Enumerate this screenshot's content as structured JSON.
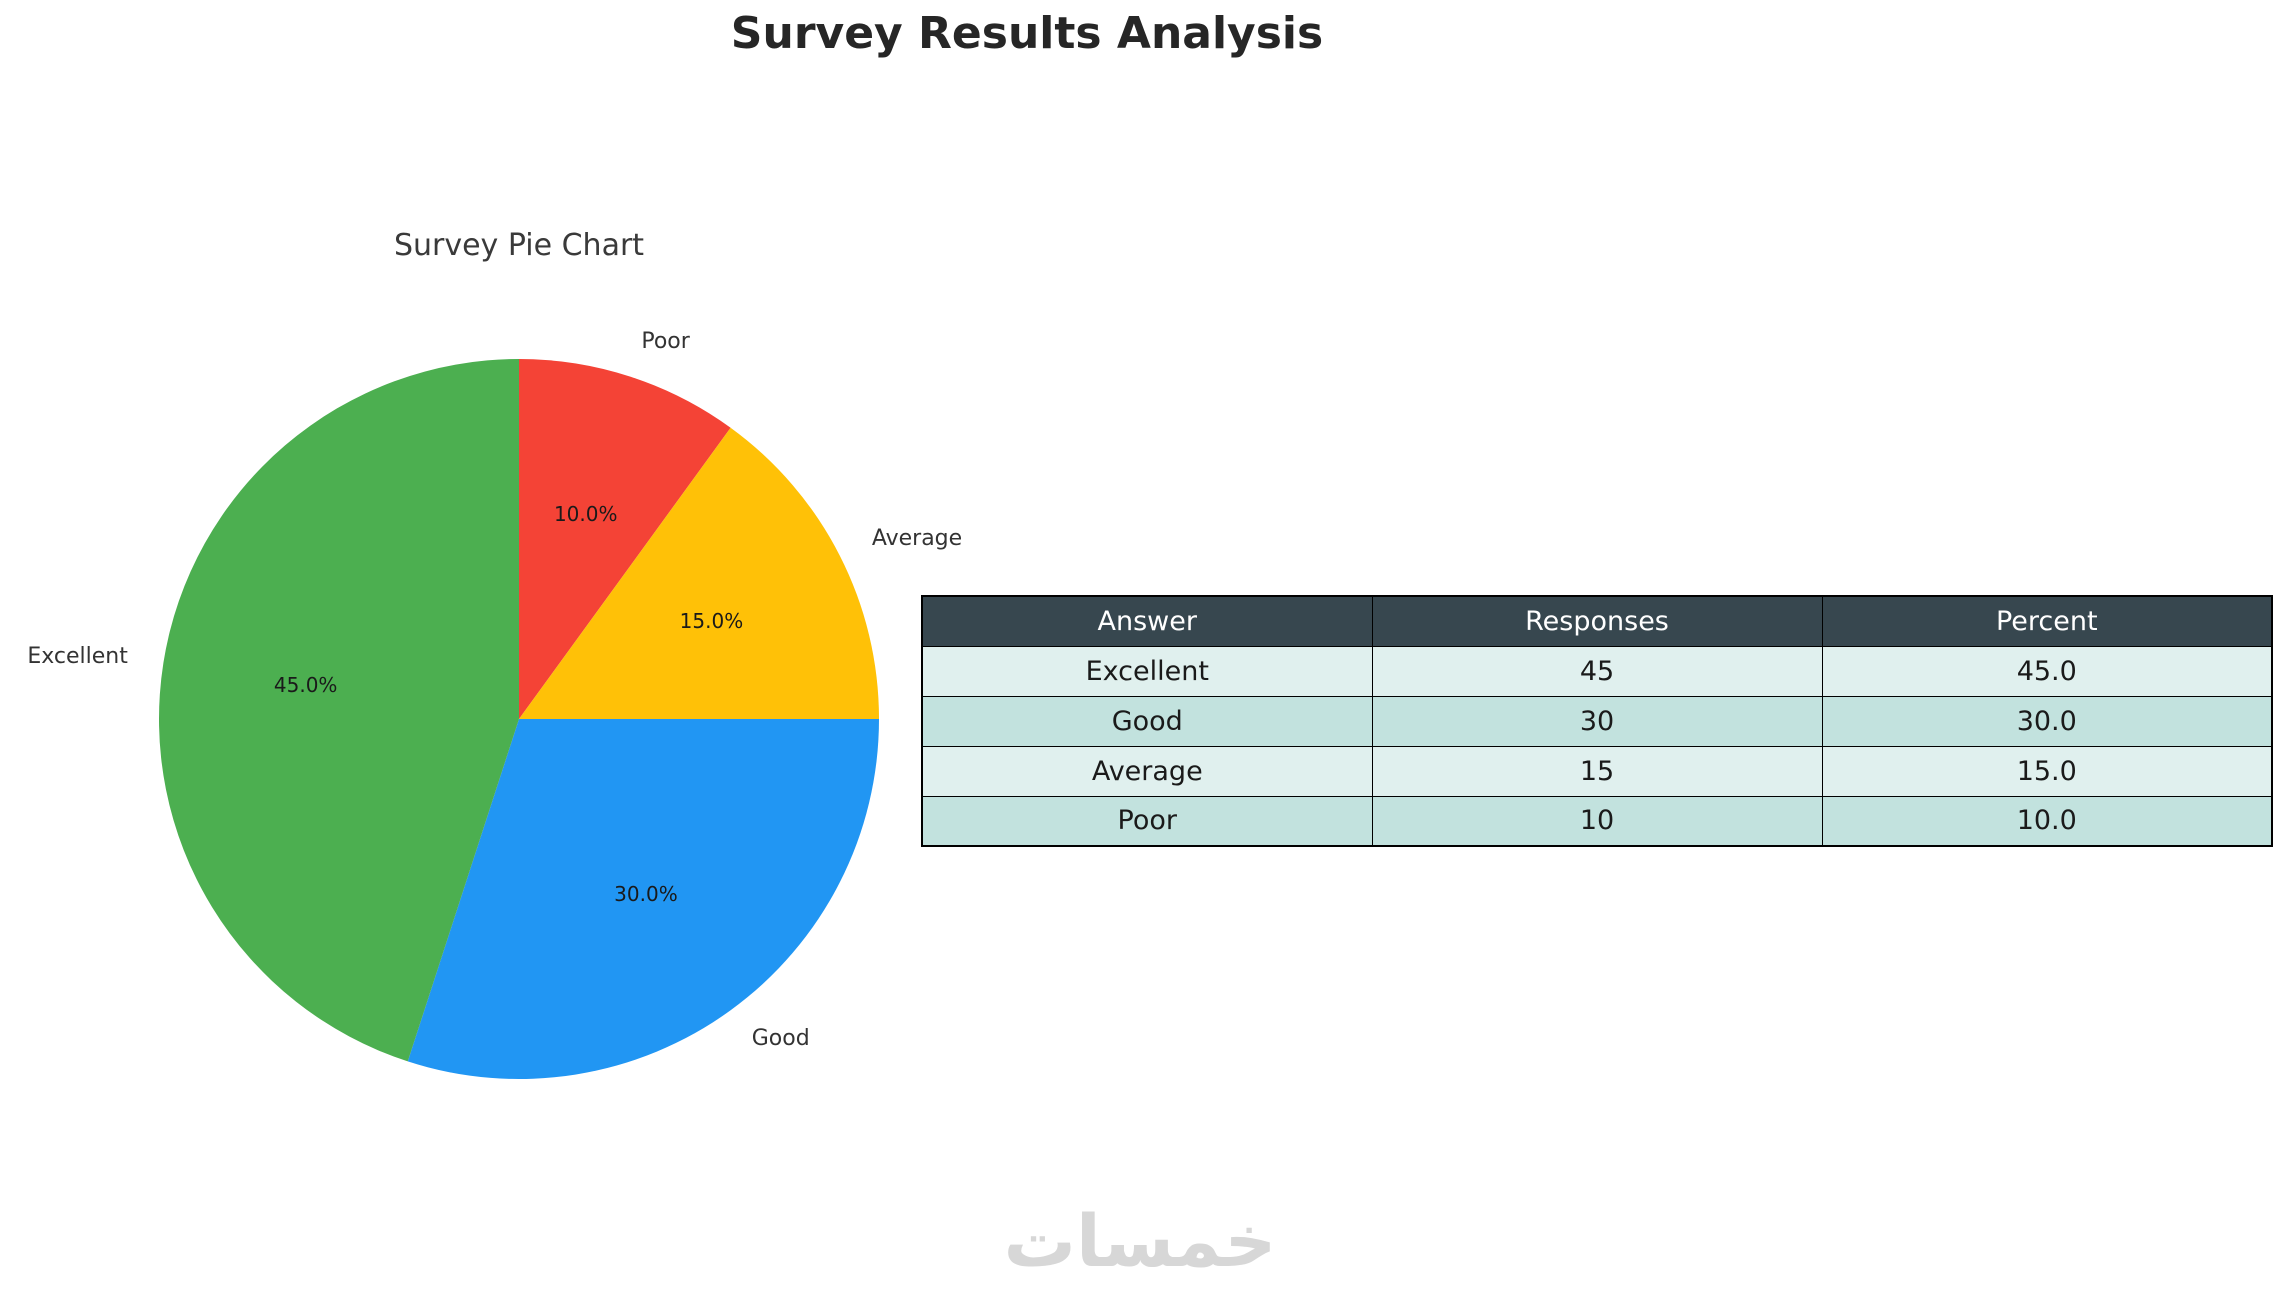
{
  "page": {
    "title": "Survey Results Analysis",
    "watermark": "خمسات"
  },
  "chart_data": {
    "type": "pie",
    "title": "Survey Pie Chart",
    "categories": [
      "Poor",
      "Average",
      "Good",
      "Excellent"
    ],
    "values": [
      10,
      15,
      30,
      45
    ],
    "percent_labels": [
      "10.0%",
      "15.0%",
      "30.0%",
      "45.0%"
    ],
    "colors": [
      "#f44336",
      "#ffc107",
      "#2196f3",
      "#4caf50"
    ],
    "start_angle": "top",
    "direction": "clockwise",
    "legend": "none"
  },
  "table": {
    "headers": [
      "Answer",
      "Responses",
      "Percent"
    ],
    "rows": [
      [
        "Excellent",
        "45",
        "45.0"
      ],
      [
        "Good",
        "30",
        "30.0"
      ],
      [
        "Average",
        "15",
        "15.0"
      ],
      [
        "Poor",
        "10",
        "10.0"
      ]
    ],
    "header_bg": "#37474f",
    "header_text_color": "#ffffff",
    "row_colors": [
      "#e0f0ee",
      "#c2e2de"
    ]
  }
}
